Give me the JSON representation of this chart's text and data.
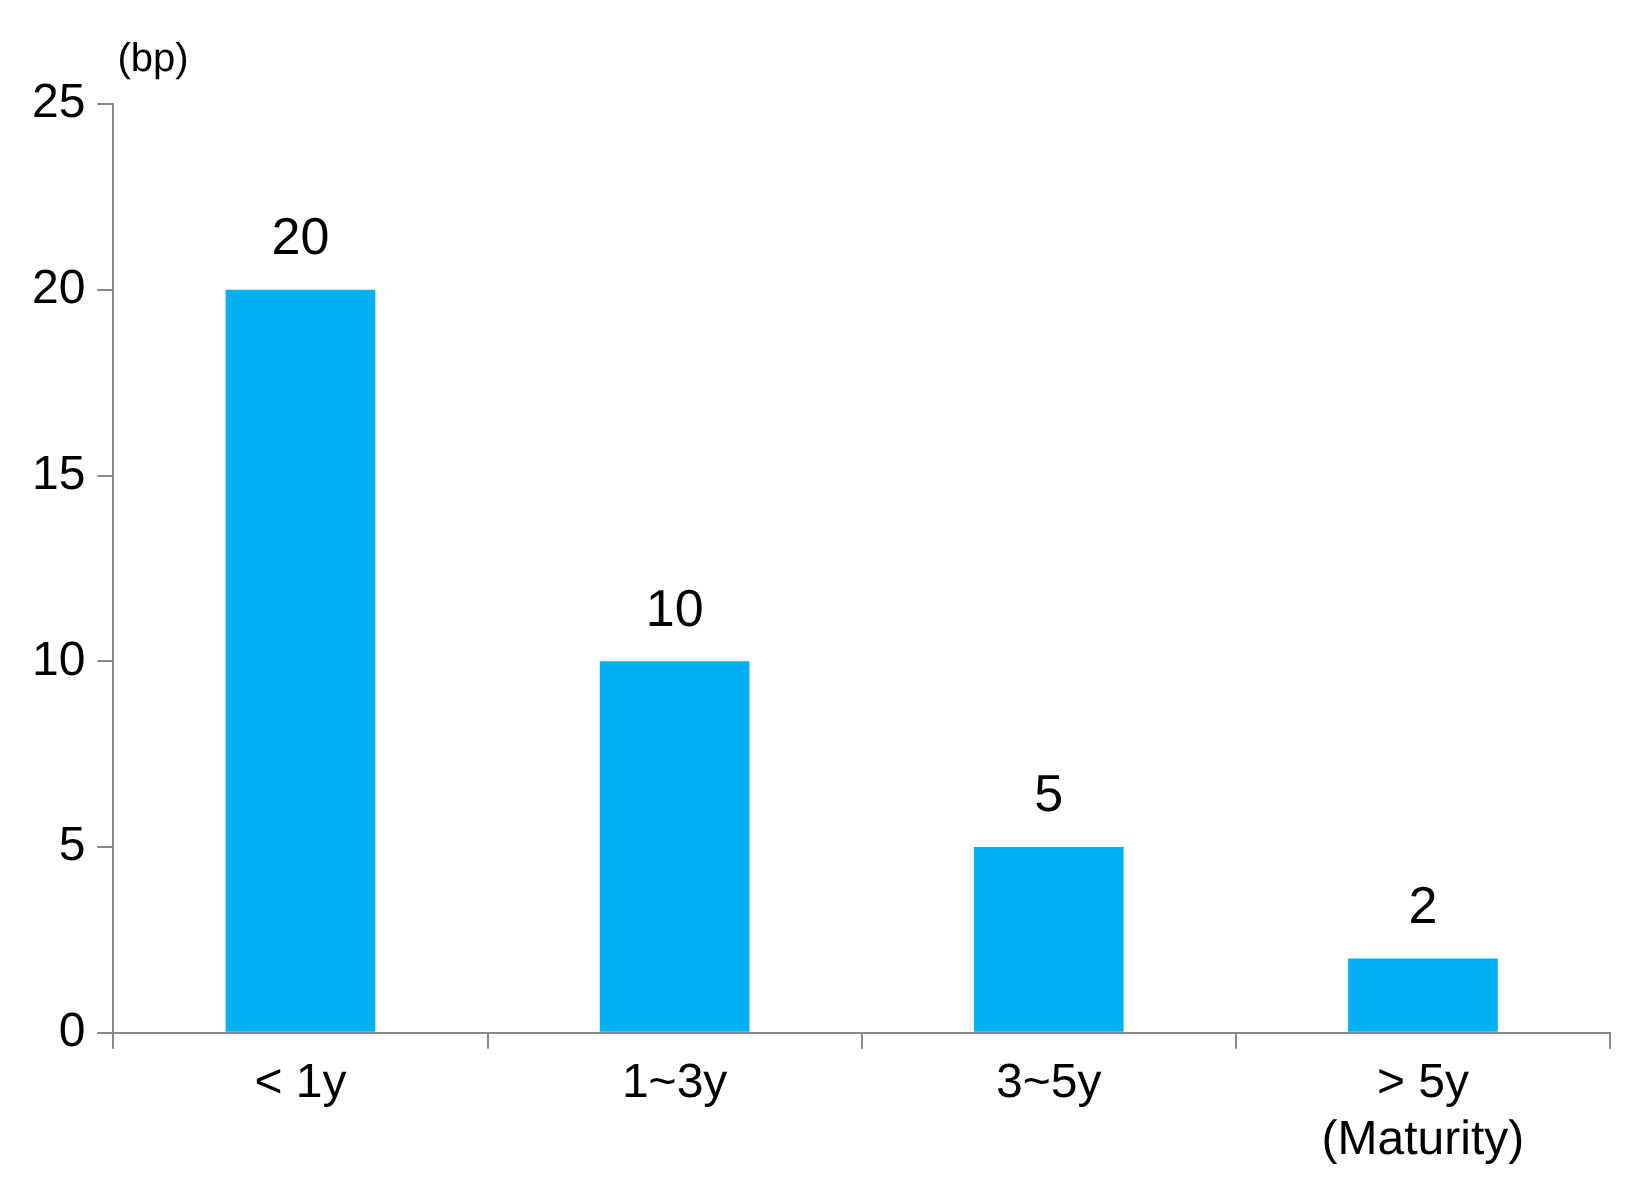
{
  "chart_data": {
    "type": "bar",
    "ylabel": "(bp)",
    "categories": [
      "< 1y",
      "1~3y",
      "3~5y",
      "> 5y\n(Maturity)"
    ],
    "values": [
      20,
      10,
      5,
      2
    ],
    "color": "#00b0f0",
    "ylim": [
      0,
      25
    ],
    "yticks": [
      0,
      5,
      10,
      15,
      20,
      25
    ],
    "grid": false,
    "data_labels": true
  }
}
